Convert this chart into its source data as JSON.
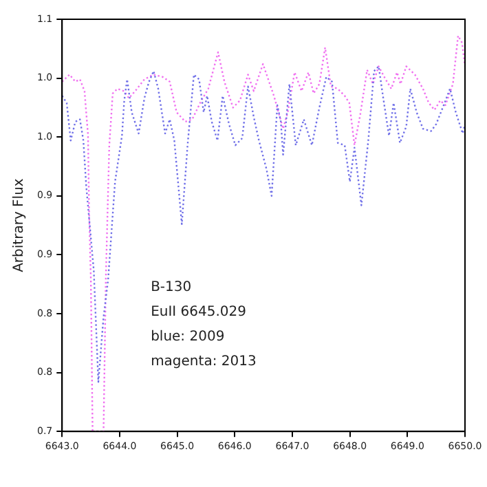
{
  "chart_data": {
    "type": "line",
    "ylabel": "Arbitrary Flux",
    "xlim": [
      6643,
      6650
    ],
    "xticks": [
      {
        "value": 6643,
        "label": "6643.0"
      },
      {
        "value": 6644,
        "label": "6644.0"
      },
      {
        "value": 6645,
        "label": "6645.0"
      },
      {
        "value": 6646,
        "label": "6646.0"
      },
      {
        "value": 6647,
        "label": "6647.0"
      },
      {
        "value": 6648,
        "label": "6648.0"
      },
      {
        "value": 6649,
        "label": "6649.0"
      },
      {
        "value": 6650,
        "label": "6650.0"
      }
    ],
    "ylim": [
      0.75,
      1.1
    ],
    "yticks": [
      {
        "value": 0.75,
        "label": "0.7"
      },
      {
        "value": 0.8,
        "label": "0.8"
      },
      {
        "value": 0.85,
        "label": "0.8"
      },
      {
        "value": 0.9,
        "label": "0.9"
      },
      {
        "value": 0.95,
        "label": "0.9"
      },
      {
        "value": 1.0,
        "label": "1.0"
      },
      {
        "value": 1.05,
        "label": "1.0"
      },
      {
        "value": 1.1,
        "label": "1.1"
      }
    ],
    "grid": false,
    "legend": false,
    "marker": "none",
    "line_style": "dotted",
    "annotations": [
      "B-130",
      "EuII 6645.029",
      "blue: 2009",
      "magenta: 2013"
    ],
    "series": [
      {
        "color": "#7070e8",
        "x": [
          6643.0,
          6643.08,
          6643.15,
          6643.23,
          6643.31,
          6643.37,
          6643.42,
          6643.55,
          6643.63,
          6643.72,
          6643.8,
          6643.92,
          6644.04,
          6644.08,
          6644.13,
          6644.21,
          6644.33,
          6644.43,
          6644.51,
          6644.59,
          6644.67,
          6644.79,
          6644.87,
          6644.95,
          6645.08,
          6645.18,
          6645.29,
          6645.38,
          6645.46,
          6645.52,
          6645.6,
          6645.7,
          6645.79,
          6645.9,
          6646.01,
          6646.13,
          6646.23,
          6646.33,
          6646.42,
          6646.55,
          6646.64,
          6646.74,
          6646.8,
          6646.84,
          6646.95,
          6647.06,
          6647.2,
          6647.34,
          6647.47,
          6647.59,
          6647.69,
          6647.79,
          6647.91,
          6648.0,
          6648.08,
          6648.2,
          6648.32,
          6648.42,
          6648.5,
          6648.58,
          6648.68,
          6648.76,
          6648.87,
          6648.98,
          6649.05,
          6649.16,
          6649.27,
          6649.41,
          6649.5,
          6649.63,
          6649.74,
          6649.84,
          6649.96,
          6650.0
        ],
        "values": [
          1.035,
          1.029,
          0.997,
          1.013,
          1.015,
          0.997,
          0.958,
          0.887,
          0.792,
          0.847,
          0.879,
          0.962,
          1.001,
          1.031,
          1.049,
          1.021,
          1.003,
          1.033,
          1.047,
          1.056,
          1.041,
          1.003,
          1.015,
          0.997,
          0.926,
          0.993,
          1.053,
          1.049,
          1.021,
          1.035,
          1.013,
          0.997,
          1.035,
          1.011,
          0.993,
          0.999,
          1.043,
          1.017,
          0.997,
          0.973,
          0.95,
          1.027,
          1.013,
          0.985,
          1.045,
          0.993,
          1.015,
          0.993,
          1.025,
          1.051,
          1.047,
          0.995,
          0.993,
          0.962,
          0.991,
          0.942,
          0.997,
          1.056,
          1.06,
          1.033,
          1.001,
          1.029,
          0.995,
          1.009,
          1.041,
          1.021,
          1.007,
          1.005,
          1.011,
          1.027,
          1.041,
          1.021,
          1.003,
          1.011
        ]
      },
      {
        "color": "#f070f0",
        "x": [
          6643.0,
          6643.13,
          6643.23,
          6643.31,
          6643.39,
          6643.45,
          6643.47,
          6643.5,
          6643.53,
          6643.72,
          6643.76,
          6643.82,
          6643.88,
          6643.96,
          6644.08,
          6644.16,
          6644.27,
          6644.43,
          6644.59,
          6644.75,
          6644.87,
          6644.99,
          6645.14,
          6645.26,
          6645.42,
          6645.54,
          6645.71,
          6645.82,
          6645.97,
          6646.09,
          6646.23,
          6646.33,
          6646.49,
          6646.68,
          6646.84,
          6646.92,
          6647.04,
          6647.16,
          6647.28,
          6647.37,
          6647.47,
          6647.57,
          6647.67,
          6647.79,
          6647.91,
          6647.99,
          6648.08,
          6648.18,
          6648.3,
          6648.4,
          6648.5,
          6648.62,
          6648.72,
          6648.82,
          6648.88,
          6648.98,
          6649.13,
          6649.27,
          6649.37,
          6649.47,
          6649.57,
          6649.66,
          6649.79,
          6649.88,
          6649.95,
          6650.0
        ],
        "values": [
          1.047,
          1.053,
          1.047,
          1.049,
          1.039,
          1.002,
          0.934,
          0.879,
          0.75,
          0.75,
          0.879,
          0.993,
          1.037,
          1.041,
          1.039,
          1.033,
          1.039,
          1.049,
          1.053,
          1.051,
          1.047,
          1.021,
          1.013,
          1.015,
          1.031,
          1.041,
          1.072,
          1.047,
          1.025,
          1.031,
          1.053,
          1.039,
          1.062,
          1.035,
          1.007,
          1.021,
          1.055,
          1.039,
          1.055,
          1.037,
          1.045,
          1.076,
          1.043,
          1.041,
          1.035,
          1.029,
          0.993,
          1.019,
          1.057,
          1.045,
          1.06,
          1.049,
          1.041,
          1.055,
          1.045,
          1.06,
          1.053,
          1.041,
          1.029,
          1.023,
          1.031,
          1.027,
          1.045,
          1.086,
          1.08,
          1.06
        ]
      }
    ]
  }
}
